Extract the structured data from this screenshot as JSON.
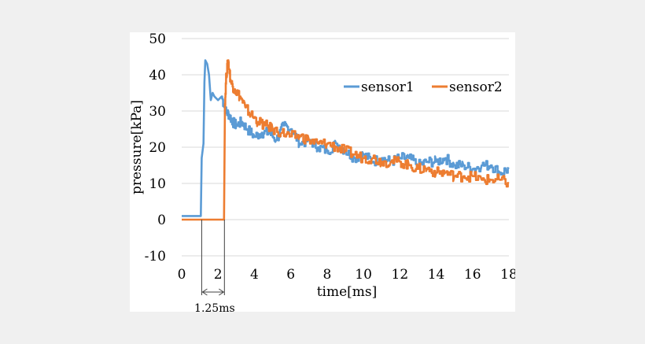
{
  "chart_data": {
    "type": "line",
    "title": "",
    "xlabel": "time[ms]",
    "ylabel": "pressure[kPa]",
    "xlim": [
      0,
      18
    ],
    "ylim": [
      -10,
      50
    ],
    "xticks": [
      "0",
      "2",
      "4",
      "6",
      "8",
      "10",
      "12",
      "14",
      "16",
      "18"
    ],
    "yticks": [
      "-10",
      "0",
      "10",
      "20",
      "30",
      "40",
      "50"
    ],
    "grid": "horizontal",
    "legend_position": "top-right",
    "annotation": {
      "text": "1.25ms",
      "from_x": 1.1,
      "to_x": 2.35
    },
    "series": [
      {
        "name": "sensor1",
        "color": "#5b9bd5",
        "x": [
          0,
          0.5,
          1.05,
          1.1,
          1.2,
          1.25,
          1.3,
          1.4,
          1.5,
          1.6,
          1.7,
          1.8,
          2.0,
          2.2,
          2.4,
          2.6,
          2.8,
          3.0,
          3.3,
          3.6,
          4.0,
          4.4,
          4.8,
          5.2,
          5.6,
          6.0,
          6.5,
          7.0,
          7.5,
          8.0,
          8.5,
          9.0,
          9.5,
          10.0,
          10.5,
          11.0,
          11.5,
          12.0,
          12.5,
          13.0,
          13.5,
          14.0,
          14.5,
          15.0,
          15.5,
          16.0,
          16.5,
          17.0,
          17.5,
          18.0
        ],
        "values": [
          1,
          1,
          1,
          17,
          21,
          38,
          44,
          43,
          40,
          33,
          35,
          34,
          33,
          34,
          30,
          29,
          27,
          26,
          27,
          25,
          23,
          24,
          24,
          22,
          26,
          25,
          21,
          22,
          20,
          19,
          21,
          19,
          17,
          18,
          16,
          17,
          16,
          17,
          17,
          15,
          16,
          16,
          17,
          15,
          15,
          14,
          15,
          15,
          13,
          14
        ]
      },
      {
        "name": "sensor2",
        "color": "#ed7d31",
        "x": [
          0,
          0.5,
          1.0,
          1.5,
          2.0,
          2.33,
          2.38,
          2.45,
          2.55,
          2.7,
          2.9,
          3.2,
          3.5,
          3.8,
          4.2,
          4.6,
          5.0,
          5.5,
          6.0,
          6.5,
          7.0,
          7.5,
          8.0,
          8.5,
          9.0,
          9.5,
          10.0,
          10.5,
          11.0,
          11.5,
          12.0,
          12.5,
          13.0,
          13.5,
          14.0,
          14.5,
          15.0,
          15.5,
          16.0,
          16.5,
          17.0,
          17.5,
          18.0
        ],
        "values": [
          0,
          0,
          0,
          0,
          0,
          0,
          32,
          40,
          44,
          38,
          36,
          34,
          31,
          29,
          27,
          26,
          25,
          24,
          23,
          23,
          22,
          21,
          21,
          20,
          19,
          18,
          17,
          17,
          16,
          16,
          16,
          15,
          14,
          14,
          13,
          13,
          12,
          12,
          12,
          11,
          11,
          11,
          10
        ]
      }
    ]
  }
}
